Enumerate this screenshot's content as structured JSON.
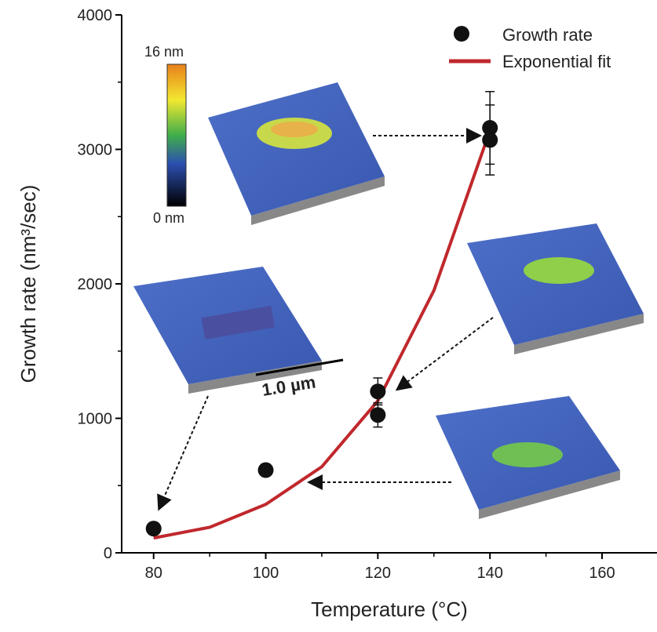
{
  "chart_data": {
    "type": "scatter",
    "x_label": "Temperature (°C)",
    "y_label": "Growth rate (nm³/sec)",
    "xlim": [
      74.3,
      169.8
    ],
    "ylim": [
      0,
      4000
    ],
    "xticks": [
      80,
      100,
      120,
      140,
      160
    ],
    "xminor_ticks": [
      90,
      110,
      130,
      150
    ],
    "yticks": [
      0,
      1000,
      2000,
      3000,
      4000
    ],
    "yminor_ticks": [
      500,
      1500,
      2500,
      3500
    ],
    "legend": "upper right",
    "series": [
      {
        "name": "Growth rate",
        "color": "#111111",
        "x": [
          80,
          100,
          120,
          120,
          140,
          140
        ],
        "values": [
          180,
          615,
          1200,
          1025,
          3160,
          3070
        ],
        "errors": [
          null,
          null,
          100,
          90,
          270,
          260
        ]
      },
      {
        "name": "Exponential fit",
        "color": "#c0282d",
        "x": [
          80,
          90,
          100,
          110,
          120,
          130,
          140
        ],
        "values": [
          110,
          190,
          360,
          640,
          1130,
          1950,
          3140
        ]
      }
    ],
    "annotations": {
      "colorbar_max": "16 nm",
      "colorbar_min": "0 nm",
      "scale_bar": "1.0 µm"
    }
  }
}
